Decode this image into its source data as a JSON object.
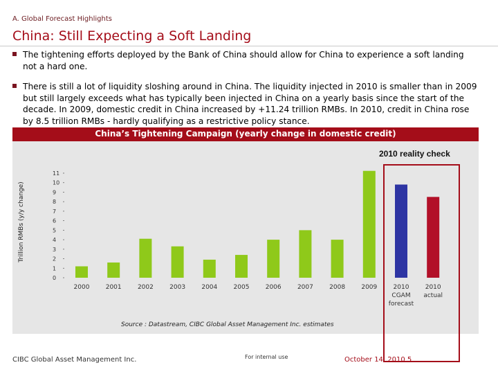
{
  "header": {
    "section": "A. Global Forecast Highlights",
    "title": "China: Still Expecting a Soft Landing"
  },
  "bullets": [
    "The tightening efforts deployed by the Bank of China should allow for China to experience a soft landing not a hard one.",
    "There is still a lot of liquidity sloshing around in China. The liquidity injected in 2010 is smaller than in 2009 but still largely exceeds what has typically been injected in China on a yearly basis since the start of the decade. In 2009, domestic credit in China increased by +11.24 trillion RMBs. In 2010, credit in China rose by 8.5 trillion RMBs - hardly qualifying as a restrictive policy stance."
  ],
  "chart_header": "China’s Tightening Campaign (yearly change in domestic credit)",
  "reality_check_label": "2010 reality check",
  "source": "Source : Datastream, CIBC Global Asset Management Inc. estimates",
  "footer": {
    "left": "CIBC Global Asset Management Inc.",
    "middle": "For internal use",
    "right": "October 14, 2010 5"
  },
  "colors": {
    "brand_red": "#a40d19",
    "green": "#8fc91a",
    "blue": "#2e35a3",
    "red": "#b21028",
    "panel": "#e6e6e6"
  },
  "chart_data": {
    "type": "bar",
    "title": "China’s Tightening Campaign (yearly change in domestic credit)",
    "ylabel": "Trillion RMBs (y/y change)",
    "xlabel": "",
    "ylim": [
      0,
      11
    ],
    "yticks": [
      0,
      1,
      2,
      3,
      4,
      5,
      6,
      7,
      8,
      9,
      10,
      11
    ],
    "grid": false,
    "categories": [
      "2000",
      "2001",
      "2002",
      "2003",
      "2004",
      "2005",
      "2006",
      "2007",
      "2008",
      "2009",
      "2010 CGAM forecast",
      "2010 actual"
    ],
    "category_lines": [
      [
        "2000"
      ],
      [
        "2001"
      ],
      [
        "2002"
      ],
      [
        "2003"
      ],
      [
        "2004"
      ],
      [
        "2005"
      ],
      [
        "2006"
      ],
      [
        "2007"
      ],
      [
        "2008"
      ],
      [
        "2009"
      ],
      [
        "2010",
        "CGAM",
        "forecast"
      ],
      [
        "2010",
        "actual"
      ]
    ],
    "values": [
      1.2,
      1.6,
      4.1,
      3.3,
      1.9,
      2.4,
      4.0,
      5.0,
      4.0,
      11.24,
      9.8,
      8.5
    ],
    "bar_colors": [
      "#8fc91a",
      "#8fc91a",
      "#8fc91a",
      "#8fc91a",
      "#8fc91a",
      "#8fc91a",
      "#8fc91a",
      "#8fc91a",
      "#8fc91a",
      "#8fc91a",
      "#2e35a3",
      "#b21028"
    ]
  }
}
